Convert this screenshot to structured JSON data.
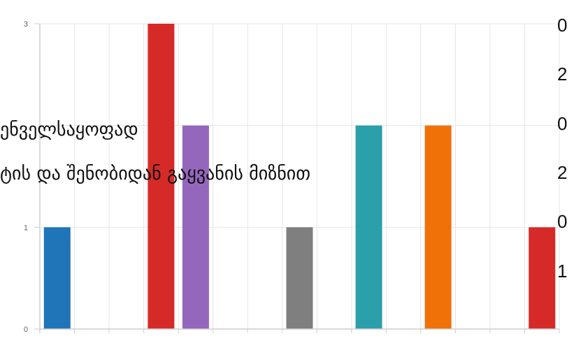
{
  "chart_data": {
    "type": "bar",
    "categories": [
      "",
      "",
      "",
      "",
      "",
      "",
      "",
      "",
      "",
      "",
      "",
      "",
      "",
      "",
      ""
    ],
    "values": [
      1,
      0,
      0,
      3,
      2,
      0,
      0,
      1,
      0,
      2,
      0,
      2,
      0,
      0,
      1
    ],
    "colors": [
      "#2074b8",
      "#2074b8",
      "#2074b8",
      "#d62a28",
      "#9467bd",
      "#9467bd",
      "#9467bd",
      "#7f7f7f",
      "#7f7f7f",
      "#2ba0aa",
      "#2ba0aa",
      "#ef7108",
      "#ef7108",
      "#d62a28",
      "#d62a28"
    ],
    "ylim": [
      0,
      3
    ],
    "yticks": [
      "0",
      "1",
      "3"
    ],
    "grid": true,
    "title": "",
    "xlabel": "",
    "ylabel": ""
  },
  "overlay": {
    "line1": "ენველსაყოფად",
    "line2": "ტის და შენობიდან გაყვანის მიზნით"
  },
  "right_values": [
    "0",
    "2",
    "0",
    "2",
    "0",
    "1"
  ]
}
